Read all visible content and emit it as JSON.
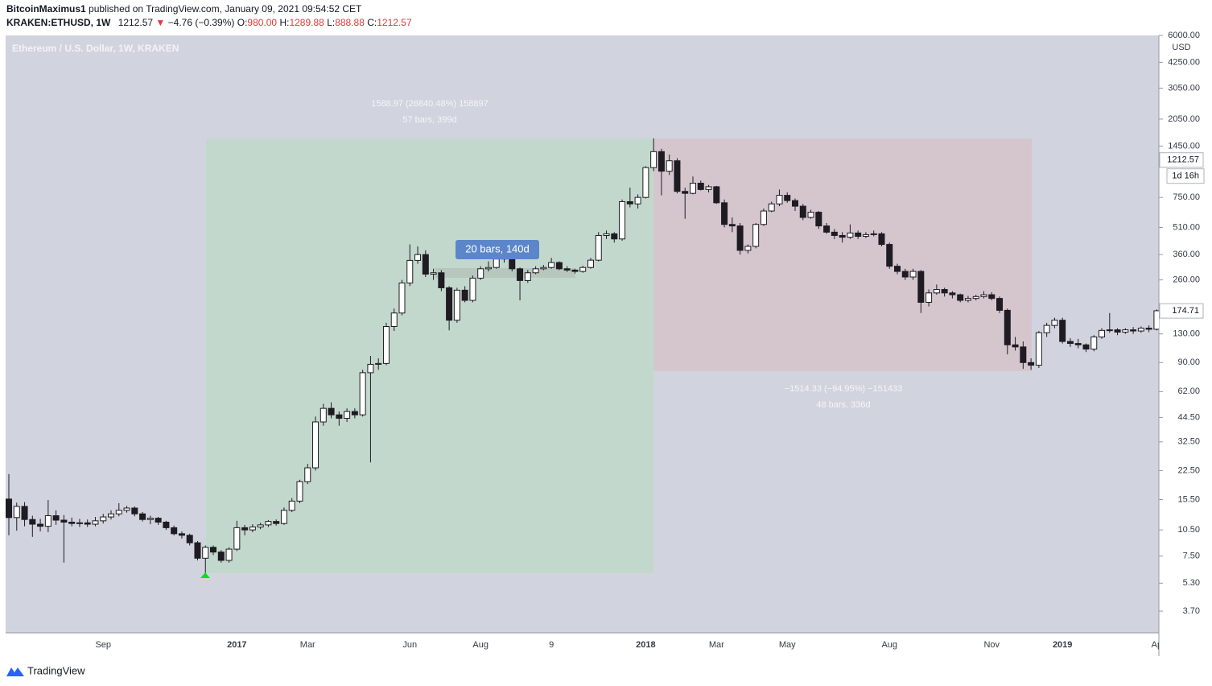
{
  "header": {
    "author": "BitcoinMaximus1",
    "published": "published on TradingView.com, January 09, 2021 09:54:52 CET",
    "symbol": "KRAKEN:ETHUSD, 1W",
    "price": "1212.57",
    "arrow": "▼",
    "change": "−4.76 (−0.39%)",
    "o_label": "O:",
    "open": "980.00",
    "h_label": "H:",
    "high": "1289.88",
    "l_label": "L:",
    "low": "888.88",
    "c_label": "C:",
    "close": "1212.57"
  },
  "footer": {
    "brand": "TradingView"
  },
  "chart_data": {
    "type": "candlestick",
    "title": "Ethereum / U.S. Dollar, 1W, KRAKEN",
    "y_label": "USD",
    "log_scale": true,
    "grid": false,
    "up_color": "#ffffff",
    "down_color": "#1e1b22",
    "wick_color": "#1e1b22",
    "ylim": [
      2.8,
      6000
    ],
    "yticks": [
      {
        "value": 3.7,
        "label": "3.70"
      },
      {
        "value": 5.3,
        "label": "5.30"
      },
      {
        "value": 7.5,
        "label": "7.50"
      },
      {
        "value": 10.5,
        "label": "10.50"
      },
      {
        "value": 15.5,
        "label": "15.50"
      },
      {
        "value": 22.5,
        "label": "22.50"
      },
      {
        "value": 32.5,
        "label": "32.50"
      },
      {
        "value": 44.5,
        "label": "44.50"
      },
      {
        "value": 62,
        "label": "62.00"
      },
      {
        "value": 90,
        "label": "90.00"
      },
      {
        "value": 130,
        "label": "130.00"
      },
      {
        "value": 260,
        "label": "260.00"
      },
      {
        "value": 360,
        "label": "360.00"
      },
      {
        "value": 510,
        "label": "510.00"
      },
      {
        "value": 750,
        "label": "750.00"
      },
      {
        "value": 1450,
        "label": "1450.00"
      },
      {
        "value": 2050,
        "label": "2050.00"
      },
      {
        "value": 3050,
        "label": "3050.00"
      },
      {
        "value": 4250,
        "label": "4250.00"
      },
      {
        "value": 6000,
        "label": "6000.00"
      }
    ],
    "last_price": 1212.57,
    "countdown": "1d 16h",
    "marker_price": 174.71,
    "annotations": [
      "1588.97 (26840.48%) 158897",
      "57 bars, 399d",
      "−1514.33 (−94.95%) −151433",
      "48 bars, 336d",
      "20 bars, 140d"
    ],
    "categories": [
      null,
      null,
      null,
      null,
      null,
      null,
      null,
      null,
      null,
      null,
      null,
      null,
      "Sep",
      null,
      null,
      null,
      null,
      null,
      null,
      null,
      null,
      null,
      null,
      null,
      null,
      null,
      null,
      null,
      null,
      "2017",
      null,
      null,
      null,
      null,
      null,
      null,
      null,
      null,
      "Mar",
      null,
      null,
      null,
      null,
      null,
      null,
      null,
      null,
      null,
      null,
      null,
      null,
      "Jun",
      null,
      null,
      null,
      null,
      null,
      null,
      null,
      null,
      "Aug",
      null,
      null,
      null,
      null,
      null,
      null,
      null,
      null,
      "9",
      null,
      null,
      null,
      null,
      null,
      null,
      null,
      null,
      null,
      null,
      null,
      "2018",
      null,
      null,
      null,
      null,
      null,
      null,
      null,
      null,
      "Mar",
      null,
      null,
      null,
      null,
      null,
      null,
      null,
      null,
      "May",
      null,
      null,
      null,
      null,
      null,
      null,
      null,
      null,
      null,
      null,
      null,
      null,
      "Aug",
      null,
      null,
      null,
      null,
      null,
      null,
      null,
      null,
      null,
      null,
      null,
      null,
      "Nov",
      null,
      null,
      null,
      null,
      null,
      null,
      null,
      null,
      "2019",
      null,
      null,
      null,
      null,
      null,
      null,
      null,
      null,
      null,
      null,
      null,
      "Ap"
    ],
    "open": [
      15.6,
      12.3,
      14.2,
      12.0,
      11.3,
      11.0,
      12.6,
      11.9,
      11.6,
      11.4,
      11.5,
      11.3,
      11.8,
      12.4,
      12.9,
      13.5,
      13.9,
      12.9,
      12.0,
      12.2,
      11.6,
      10.8,
      10.0,
      9.8,
      8.9,
      7.3,
      8.4,
      7.9,
      7.1,
      8.2,
      10.8,
      10.5,
      10.9,
      11.2,
      11.7,
      11.4,
      13.5,
      15.2,
      19.5,
      23.3,
      42,
      50,
      46,
      44,
      48,
      46,
      79,
      88,
      89,
      143,
      170,
      250,
      334,
      360,
      280,
      285,
      235,
      155,
      228,
      200,
      266,
      300,
      305,
      340,
      345,
      300,
      258,
      285,
      300,
      305,
      325,
      300,
      295,
      290,
      305,
      335,
      460,
      470,
      440,
      710,
      690,
      750,
      1100,
      1350,
      1050,
      1200,
      810,
      790,
      900,
      830,
      860,
      700,
      530,
      520,
      380,
      400,
      530,
      630,
      690,
      770,
      720,
      670,
      580,
      620,
      520,
      480,
      460,
      450,
      475,
      455,
      465,
      470,
      410,
      310,
      290,
      270,
      290,
      195,
      220,
      230,
      220,
      215,
      200,
      205,
      210,
      215,
      205,
      176,
      113,
      110,
      90,
      87,
      132,
      145,
      155,
      118,
      115,
      113,
      107,
      125,
      136,
      137,
      133,
      137,
      135,
      140,
      138
    ],
    "high": [
      21.5,
      14.9,
      15.0,
      12.6,
      12.1,
      15.4,
      13.5,
      12.7,
      12.3,
      12.1,
      12.0,
      12.4,
      12.9,
      13.5,
      14.8,
      14.3,
      14.2,
      13.2,
      12.6,
      12.4,
      11.8,
      11.1,
      10.3,
      10.0,
      9.1,
      8.6,
      8.6,
      8.1,
      8.4,
      11.8,
      11.2,
      11.3,
      11.5,
      11.9,
      12.0,
      14.0,
      15.8,
      20.0,
      24.5,
      45,
      53,
      54,
      48,
      50,
      50,
      82,
      98,
      95,
      150,
      180,
      260,
      410,
      400,
      380,
      300,
      295,
      240,
      235,
      240,
      275,
      310,
      330,
      350,
      390,
      350,
      305,
      295,
      310,
      315,
      345,
      330,
      310,
      300,
      312,
      345,
      480,
      490,
      480,
      730,
      850,
      780,
      1120,
      1600,
      1400,
      1300,
      1240,
      850,
      980,
      930,
      880,
      870,
      730,
      580,
      540,
      410,
      540,
      650,
      710,
      830,
      800,
      740,
      690,
      640,
      630,
      540,
      500,
      480,
      530,
      490,
      480,
      490,
      480,
      420,
      320,
      300,
      300,
      295,
      230,
      245,
      235,
      225,
      218,
      212,
      215,
      225,
      222,
      210,
      180,
      125,
      118,
      95,
      135,
      150,
      160,
      160,
      123,
      122,
      115,
      128,
      140,
      170,
      140,
      140,
      142,
      143,
      145,
      178
    ],
    "low": [
      9.8,
      10.4,
      11.0,
      9.6,
      10.3,
      10.2,
      11.2,
      6.9,
      11.0,
      10.9,
      10.9,
      11.0,
      11.4,
      12.0,
      12.5,
      13.1,
      12.5,
      11.7,
      11.3,
      11.2,
      10.5,
      9.8,
      9.4,
      8.6,
      7.1,
      5.92,
      7.6,
      6.9,
      6.9,
      8.0,
      9.8,
      10.2,
      10.6,
      10.9,
      11.1,
      11.2,
      13.2,
      14.8,
      18.9,
      22.5,
      40,
      44,
      40,
      42,
      44,
      45,
      25,
      82,
      87,
      135,
      165,
      240,
      320,
      270,
      260,
      225,
      136,
      150,
      195,
      195,
      260,
      290,
      300,
      325,
      290,
      200,
      250,
      280,
      295,
      300,
      295,
      288,
      282,
      285,
      300,
      330,
      440,
      420,
      430,
      660,
      650,
      740,
      1050,
      770,
      1000,
      790,
      570,
      780,
      820,
      800,
      690,
      510,
      480,
      360,
      365,
      390,
      520,
      620,
      670,
      700,
      630,
      560,
      570,
      500,
      470,
      440,
      420,
      440,
      440,
      445,
      455,
      400,
      300,
      280,
      260,
      260,
      170,
      185,
      215,
      210,
      205,
      195,
      195,
      200,
      205,
      200,
      170,
      100,
      105,
      83,
      82,
      84,
      125,
      140,
      115,
      110,
      108,
      103,
      104,
      122,
      132,
      128,
      130,
      130,
      132,
      133,
      136
    ],
    "close": [
      12.3,
      14.2,
      12.0,
      11.3,
      11.0,
      12.6,
      11.9,
      11.6,
      11.4,
      11.5,
      11.3,
      11.8,
      12.4,
      12.9,
      13.5,
      13.9,
      12.9,
      12.0,
      12.2,
      11.6,
      10.8,
      10.0,
      9.8,
      8.9,
      7.3,
      8.4,
      7.9,
      7.1,
      8.2,
      10.8,
      10.5,
      10.9,
      11.2,
      11.7,
      11.4,
      13.5,
      15.2,
      19.5,
      23.3,
      42,
      50,
      46,
      44,
      48,
      46,
      79,
      88,
      89,
      143,
      170,
      250,
      334,
      360,
      280,
      285,
      235,
      155,
      228,
      200,
      266,
      300,
      305,
      340,
      345,
      300,
      258,
      285,
      300,
      305,
      325,
      300,
      295,
      290,
      305,
      335,
      460,
      470,
      440,
      710,
      690,
      750,
      1100,
      1350,
      1050,
      1200,
      810,
      790,
      900,
      830,
      860,
      700,
      530,
      520,
      380,
      400,
      530,
      630,
      690,
      770,
      720,
      670,
      580,
      620,
      520,
      480,
      460,
      450,
      475,
      455,
      465,
      470,
      410,
      310,
      290,
      270,
      290,
      195,
      220,
      230,
      220,
      215,
      200,
      205,
      210,
      215,
      205,
      176,
      113,
      110,
      90,
      87,
      132,
      145,
      155,
      118,
      115,
      113,
      107,
      125,
      136,
      137,
      133,
      137,
      135,
      140,
      138,
      175
    ]
  }
}
